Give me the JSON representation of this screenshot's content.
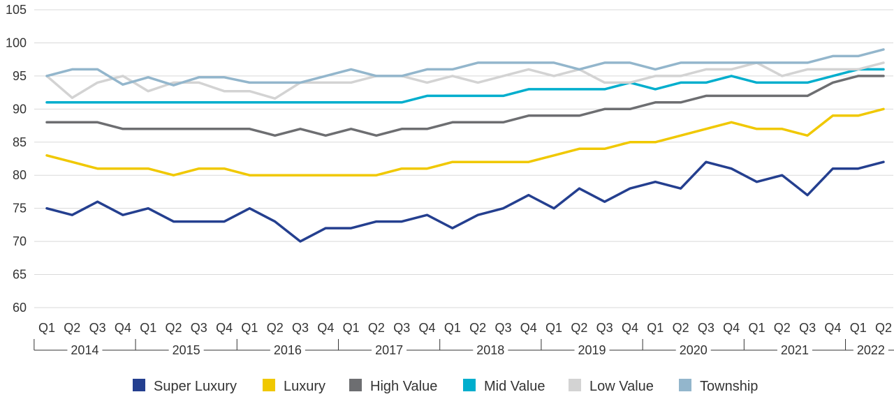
{
  "chart_data": {
    "type": "line",
    "title": "",
    "xlabel": "",
    "ylabel": "",
    "ylim": [
      60,
      105
    ],
    "yticks": [
      60,
      65,
      70,
      75,
      80,
      85,
      90,
      95,
      100,
      105
    ],
    "grid": true,
    "legend_position": "bottom",
    "categories": [
      "Q1",
      "Q2",
      "Q3",
      "Q4",
      "Q1",
      "Q2",
      "Q3",
      "Q4",
      "Q1",
      "Q2",
      "Q3",
      "Q4",
      "Q1",
      "Q2",
      "Q3",
      "Q4",
      "Q1",
      "Q2",
      "Q3",
      "Q4",
      "Q1",
      "Q2",
      "Q3",
      "Q4",
      "Q1",
      "Q2",
      "Q3",
      "Q4",
      "Q1",
      "Q2",
      "Q3",
      "Q4",
      "Q1",
      "Q2"
    ],
    "years": [
      {
        "label": "2014",
        "count": 4
      },
      {
        "label": "2015",
        "count": 4
      },
      {
        "label": "2016",
        "count": 4
      },
      {
        "label": "2017",
        "count": 4
      },
      {
        "label": "2018",
        "count": 4
      },
      {
        "label": "2019",
        "count": 4
      },
      {
        "label": "2020",
        "count": 4
      },
      {
        "label": "2021",
        "count": 4
      },
      {
        "label": "2022",
        "count": 2
      }
    ],
    "series": [
      {
        "name": "Super Luxury",
        "color": "#243f8f",
        "values": [
          75,
          74,
          76,
          74,
          75,
          73,
          73,
          73,
          75,
          73,
          70,
          72,
          72,
          73,
          73,
          74,
          72,
          74,
          75,
          77,
          75,
          78,
          76,
          78,
          79,
          78,
          82,
          81,
          79,
          80,
          77,
          81,
          81,
          82
        ]
      },
      {
        "name": "Luxury",
        "color": "#f0c800",
        "values": [
          83,
          82,
          81,
          81,
          81,
          80,
          81,
          81,
          80,
          80,
          80,
          80,
          80,
          80,
          81,
          81,
          82,
          82,
          82,
          82,
          83,
          84,
          84,
          85,
          85,
          86,
          87,
          88,
          87,
          87,
          86,
          89,
          89,
          90
        ]
      },
      {
        "name": "High Value",
        "color": "#6d6e71",
        "values": [
          88,
          88,
          88,
          87,
          87,
          87,
          87,
          87,
          87,
          86,
          87,
          86,
          87,
          86,
          87,
          87,
          88,
          88,
          88,
          89,
          89,
          89,
          90,
          90,
          91,
          91,
          92,
          92,
          92,
          92,
          92,
          94,
          95,
          95
        ]
      },
      {
        "name": "Mid Value",
        "color": "#00aecd",
        "values": [
          91,
          91,
          91,
          91,
          91,
          91,
          91,
          91,
          91,
          91,
          91,
          91,
          91,
          91,
          91,
          92,
          92,
          92,
          92,
          93,
          93,
          93,
          93,
          94,
          93,
          94,
          94,
          95,
          94,
          94,
          94,
          95,
          96,
          96
        ]
      },
      {
        "name": "Low Value",
        "color": "#d3d3d3",
        "values": [
          95,
          91.7,
          94,
          95,
          92.7,
          94,
          94,
          92.7,
          92.7,
          91.6,
          94,
          94,
          94,
          95,
          95,
          94,
          95,
          94,
          95,
          96,
          95,
          96,
          94,
          94,
          95,
          95,
          96,
          96,
          97,
          95,
          96,
          96,
          96,
          97
        ]
      },
      {
        "name": "Township",
        "color": "#93b6cc",
        "values": [
          95,
          96,
          96,
          93.7,
          94.8,
          93.6,
          94.8,
          94.8,
          94,
          94,
          94,
          95,
          96,
          95,
          95,
          96,
          96,
          97,
          97,
          97,
          97,
          96,
          97,
          97,
          96,
          97,
          97,
          97,
          97,
          97,
          97,
          98,
          98,
          99
        ]
      }
    ]
  }
}
